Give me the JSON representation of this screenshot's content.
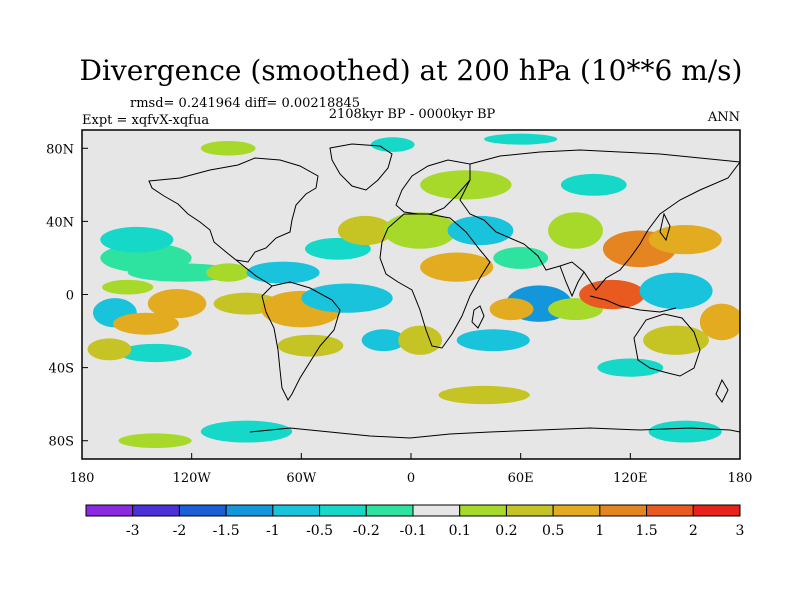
{
  "chart_data": {
    "type": "heatmap",
    "title": "Divergence (smoothed) at 200 hPa (10**6 m/s)",
    "stats_text": "rmsd= 0.241964 diff= 0.00218845",
    "experiment_text": "Expt = xqfvX-xqfua",
    "period_text": "2108kyr BP - 0000kyr BP",
    "season_text": "ANN",
    "projection": "cylindrical equidistant",
    "lon_range": [
      -180,
      180
    ],
    "lat_range": [
      -90,
      90
    ],
    "x_ticks": [
      {
        "value": -180,
        "label": "180"
      },
      {
        "value": -120,
        "label": "120W"
      },
      {
        "value": -60,
        "label": "60W"
      },
      {
        "value": 0,
        "label": "0"
      },
      {
        "value": 60,
        "label": "60E"
      },
      {
        "value": 120,
        "label": "120E"
      },
      {
        "value": 180,
        "label": "180"
      }
    ],
    "y_ticks": [
      {
        "value": 80,
        "label": "80N"
      },
      {
        "value": 40,
        "label": "40N"
      },
      {
        "value": 0,
        "label": "0"
      },
      {
        "value": -40,
        "label": "40S"
      },
      {
        "value": -80,
        "label": "80S"
      }
    ],
    "colorbar": {
      "levels": [
        "-3",
        "-2",
        "-1.5",
        "-1",
        "-0.5",
        "-0.2",
        "-0.1",
        "0.1",
        "0.2",
        "0.5",
        "1",
        "1.5",
        "2",
        "3"
      ],
      "colors": [
        "#8a2be2",
        "#4b32d8",
        "#1a5fd6",
        "#1396dc",
        "#19c3dc",
        "#15d8c8",
        "#2ee3a0",
        "#e6e6e6",
        "#a6d92a",
        "#c6c424",
        "#e2ab20",
        "#e58522",
        "#e85a20",
        "#e8231c"
      ]
    },
    "regions": [
      {
        "lon": -162,
        "lat": -10,
        "rlon": 12,
        "rlat": 8,
        "color_index": 4
      },
      {
        "lon": -145,
        "lat": -16,
        "rlon": 18,
        "rlat": 6,
        "color_index": 10
      },
      {
        "lon": -155,
        "lat": 4,
        "rlon": 14,
        "rlat": 4,
        "color_index": 8
      },
      {
        "lon": -128,
        "lat": -5,
        "rlon": 16,
        "rlat": 8,
        "color_index": 10
      },
      {
        "lon": -145,
        "lat": 20,
        "rlon": 25,
        "rlat": 8,
        "color_index": 6
      },
      {
        "lon": -150,
        "lat": 30,
        "rlon": 20,
        "rlat": 7,
        "color_index": 5
      },
      {
        "lon": -125,
        "lat": 12,
        "rlon": 30,
        "rlat": 5,
        "color_index": 6
      },
      {
        "lon": -140,
        "lat": -32,
        "rlon": 20,
        "rlat": 5,
        "color_index": 5
      },
      {
        "lon": -165,
        "lat": -30,
        "rlon": 12,
        "rlat": 6,
        "color_index": 9
      },
      {
        "lon": -100,
        "lat": 12,
        "rlon": 12,
        "rlat": 5,
        "color_index": 8
      },
      {
        "lon": -70,
        "lat": 12,
        "rlon": 20,
        "rlat": 6,
        "color_index": 4
      },
      {
        "lon": -90,
        "lat": -5,
        "rlon": 18,
        "rlat": 6,
        "color_index": 9
      },
      {
        "lon": -60,
        "lat": -8,
        "rlon": 22,
        "rlat": 10,
        "color_index": 10
      },
      {
        "lon": -35,
        "lat": -2,
        "rlon": 25,
        "rlat": 8,
        "color_index": 4
      },
      {
        "lon": -40,
        "lat": 25,
        "rlon": 18,
        "rlat": 6,
        "color_index": 5
      },
      {
        "lon": -25,
        "lat": 35,
        "rlon": 15,
        "rlat": 8,
        "color_index": 9
      },
      {
        "lon": -55,
        "lat": -28,
        "rlon": 18,
        "rlat": 6,
        "color_index": 9
      },
      {
        "lon": -15,
        "lat": -25,
        "rlon": 12,
        "rlat": 6,
        "color_index": 4
      },
      {
        "lon": 5,
        "lat": -25,
        "rlon": 12,
        "rlat": 8,
        "color_index": 9
      },
      {
        "lon": 5,
        "lat": 35,
        "rlon": 20,
        "rlat": 10,
        "color_index": 8
      },
      {
        "lon": 25,
        "lat": 15,
        "rlon": 20,
        "rlat": 8,
        "color_index": 10
      },
      {
        "lon": 38,
        "lat": 35,
        "rlon": 18,
        "rlat": 8,
        "color_index": 4
      },
      {
        "lon": 30,
        "lat": 60,
        "rlon": 25,
        "rlat": 8,
        "color_index": 8
      },
      {
        "lon": 60,
        "lat": 20,
        "rlon": 15,
        "rlat": 6,
        "color_index": 6
      },
      {
        "lon": 70,
        "lat": -5,
        "rlon": 18,
        "rlat": 10,
        "color_index": 3
      },
      {
        "lon": 55,
        "lat": -8,
        "rlon": 12,
        "rlat": 6,
        "color_index": 10
      },
      {
        "lon": 45,
        "lat": -25,
        "rlon": 20,
        "rlat": 6,
        "color_index": 4
      },
      {
        "lon": 90,
        "lat": -8,
        "rlon": 15,
        "rlat": 6,
        "color_index": 8
      },
      {
        "lon": 110,
        "lat": 0,
        "rlon": 18,
        "rlat": 8,
        "color_index": 12
      },
      {
        "lon": 145,
        "lat": 2,
        "rlon": 20,
        "rlat": 10,
        "color_index": 4
      },
      {
        "lon": 125,
        "lat": 25,
        "rlon": 20,
        "rlat": 10,
        "color_index": 11
      },
      {
        "lon": 150,
        "lat": 30,
        "rlon": 20,
        "rlat": 8,
        "color_index": 10
      },
      {
        "lon": 90,
        "lat": 35,
        "rlon": 15,
        "rlat": 10,
        "color_index": 8
      },
      {
        "lon": 100,
        "lat": 60,
        "rlon": 18,
        "rlat": 6,
        "color_index": 5
      },
      {
        "lon": 145,
        "lat": -25,
        "rlon": 18,
        "rlat": 8,
        "color_index": 9
      },
      {
        "lon": 170,
        "lat": -15,
        "rlon": 12,
        "rlat": 10,
        "color_index": 10
      },
      {
        "lon": 120,
        "lat": -40,
        "rlon": 18,
        "rlat": 5,
        "color_index": 5
      },
      {
        "lon": 40,
        "lat": -55,
        "rlon": 25,
        "rlat": 5,
        "color_index": 9
      },
      {
        "lon": -10,
        "lat": 82,
        "rlon": 12,
        "rlat": 4,
        "color_index": 5
      },
      {
        "lon": -100,
        "lat": 80,
        "rlon": 15,
        "rlat": 4,
        "color_index": 8
      },
      {
        "lon": 60,
        "lat": 85,
        "rlon": 20,
        "rlat": 3,
        "color_index": 5
      },
      {
        "lon": -90,
        "lat": -75,
        "rlon": 25,
        "rlat": 6,
        "color_index": 5
      },
      {
        "lon": 150,
        "lat": -75,
        "rlon": 20,
        "rlat": 6,
        "color_index": 5
      },
      {
        "lon": -140,
        "lat": -80,
        "rlon": 20,
        "rlat": 4,
        "color_index": 8
      }
    ]
  }
}
